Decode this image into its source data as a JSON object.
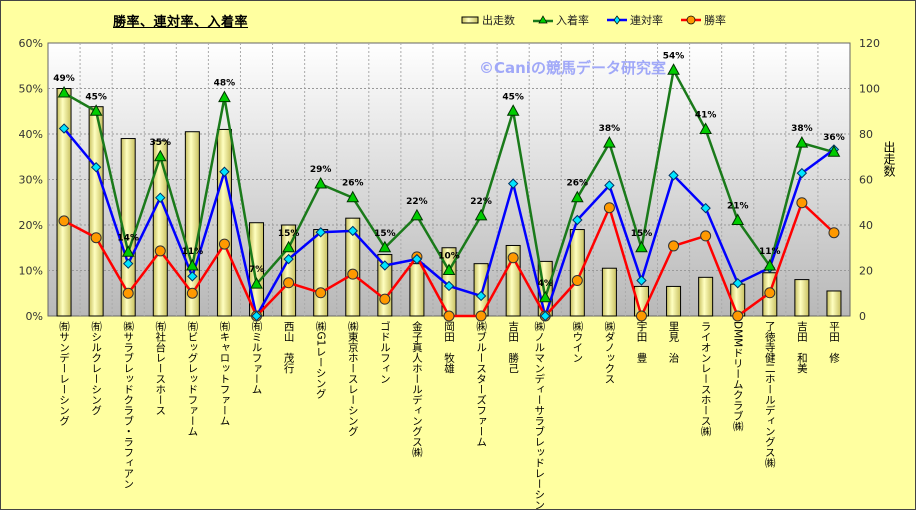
{
  "chart_data": {
    "type": "bar+line",
    "title": "勝率、連対率、入着率",
    "watermark": "©Caniの競馬データ研究室",
    "categories": [
      "㈲サンデーレーシング",
      "㈲シルクレーシング",
      "㈱サラブレッドクラブ・ラフィアン",
      "㈲社台レースホース",
      "㈲ビッグレッドファーム",
      "㈲キャロットファーム",
      "㈲ミルファーム",
      "西山　茂行",
      "㈱G1レーシング",
      "㈱東京ホースレーシング",
      "ゴドルフィン",
      "金子真人ホールディングス㈱",
      "岡田　牧雄",
      "㈱ブルースターズファーム",
      "吉田　勝己",
      "㈱ノルマンディーサラブレッドレーシング",
      "㈱ウイン",
      "㈱ダノックス",
      "宇田　豊",
      "里見　治",
      "ライオンレースホース㈱",
      "DMMドリームクラブ㈱",
      "了徳寺健二ホールディングス㈱",
      "吉田　和美",
      "平田　修"
    ],
    "left_axis": {
      "ylim": [
        0,
        60
      ],
      "ticks": [
        "0%",
        "10%",
        "20%",
        "30%",
        "40%",
        "50%",
        "60%"
      ]
    },
    "right_axis": {
      "ylim": [
        0,
        120
      ],
      "ticks": [
        "0",
        "20",
        "40",
        "60",
        "80",
        "100",
        "120"
      ],
      "label": "出走数"
    },
    "series": [
      {
        "name": "出走数",
        "type": "bar",
        "axis": "right",
        "color": "#f5f0a0",
        "values": [
          100,
          92,
          78,
          77,
          81,
          82,
          41,
          40,
          38,
          43,
          27,
          23,
          30,
          23,
          31,
          24,
          38,
          21,
          13,
          13,
          17,
          14,
          19,
          16,
          11
        ]
      },
      {
        "name": "入着率",
        "type": "line",
        "axis": "left",
        "color": "#1a7a1a",
        "marker": "triangle",
        "marker_color": "#00cc00",
        "values": [
          49,
          45,
          14,
          35,
          11,
          48,
          7,
          15,
          29,
          26,
          15,
          22,
          10,
          22,
          45,
          4,
          26,
          38,
          15,
          54,
          41,
          21,
          11,
          38,
          36
        ],
        "labels": [
          "49%",
          "45%",
          "14%",
          "35%",
          "11%",
          "48%",
          "7%",
          "15%",
          "29%",
          "26%",
          "15%",
          "22%",
          "10%",
          "22%",
          "45%",
          "4%",
          "26%",
          "38%",
          "15%",
          "54%",
          "41%",
          "21%",
          "11%",
          "38%",
          "36%"
        ]
      },
      {
        "name": "連対率",
        "type": "line",
        "axis": "left",
        "color": "#0000ff",
        "marker": "diamond",
        "marker_color": "#00e5ff",
        "values": [
          41.2,
          32.7,
          11.5,
          26.0,
          8.7,
          31.7,
          0,
          12.5,
          18.4,
          18.7,
          11.1,
          12.5,
          6.6,
          4.4,
          29.1,
          0,
          21.1,
          28.7,
          7.8,
          30.9,
          23.7,
          7.2,
          10.6,
          31.4,
          36.6
        ]
      },
      {
        "name": "勝率",
        "type": "line",
        "axis": "left",
        "color": "#ff0000",
        "marker": "circle",
        "marker_color": "#ff9900",
        "values": [
          20.9,
          17.2,
          5.0,
          14.3,
          5.0,
          15.8,
          0,
          7.3,
          5.1,
          9.2,
          3.7,
          13.0,
          0,
          0,
          12.8,
          0,
          7.8,
          23.8,
          0,
          15.4,
          17.6,
          0,
          5.1,
          24.9,
          18.3
        ]
      }
    ],
    "legend_position": "top-right",
    "grid": true
  }
}
